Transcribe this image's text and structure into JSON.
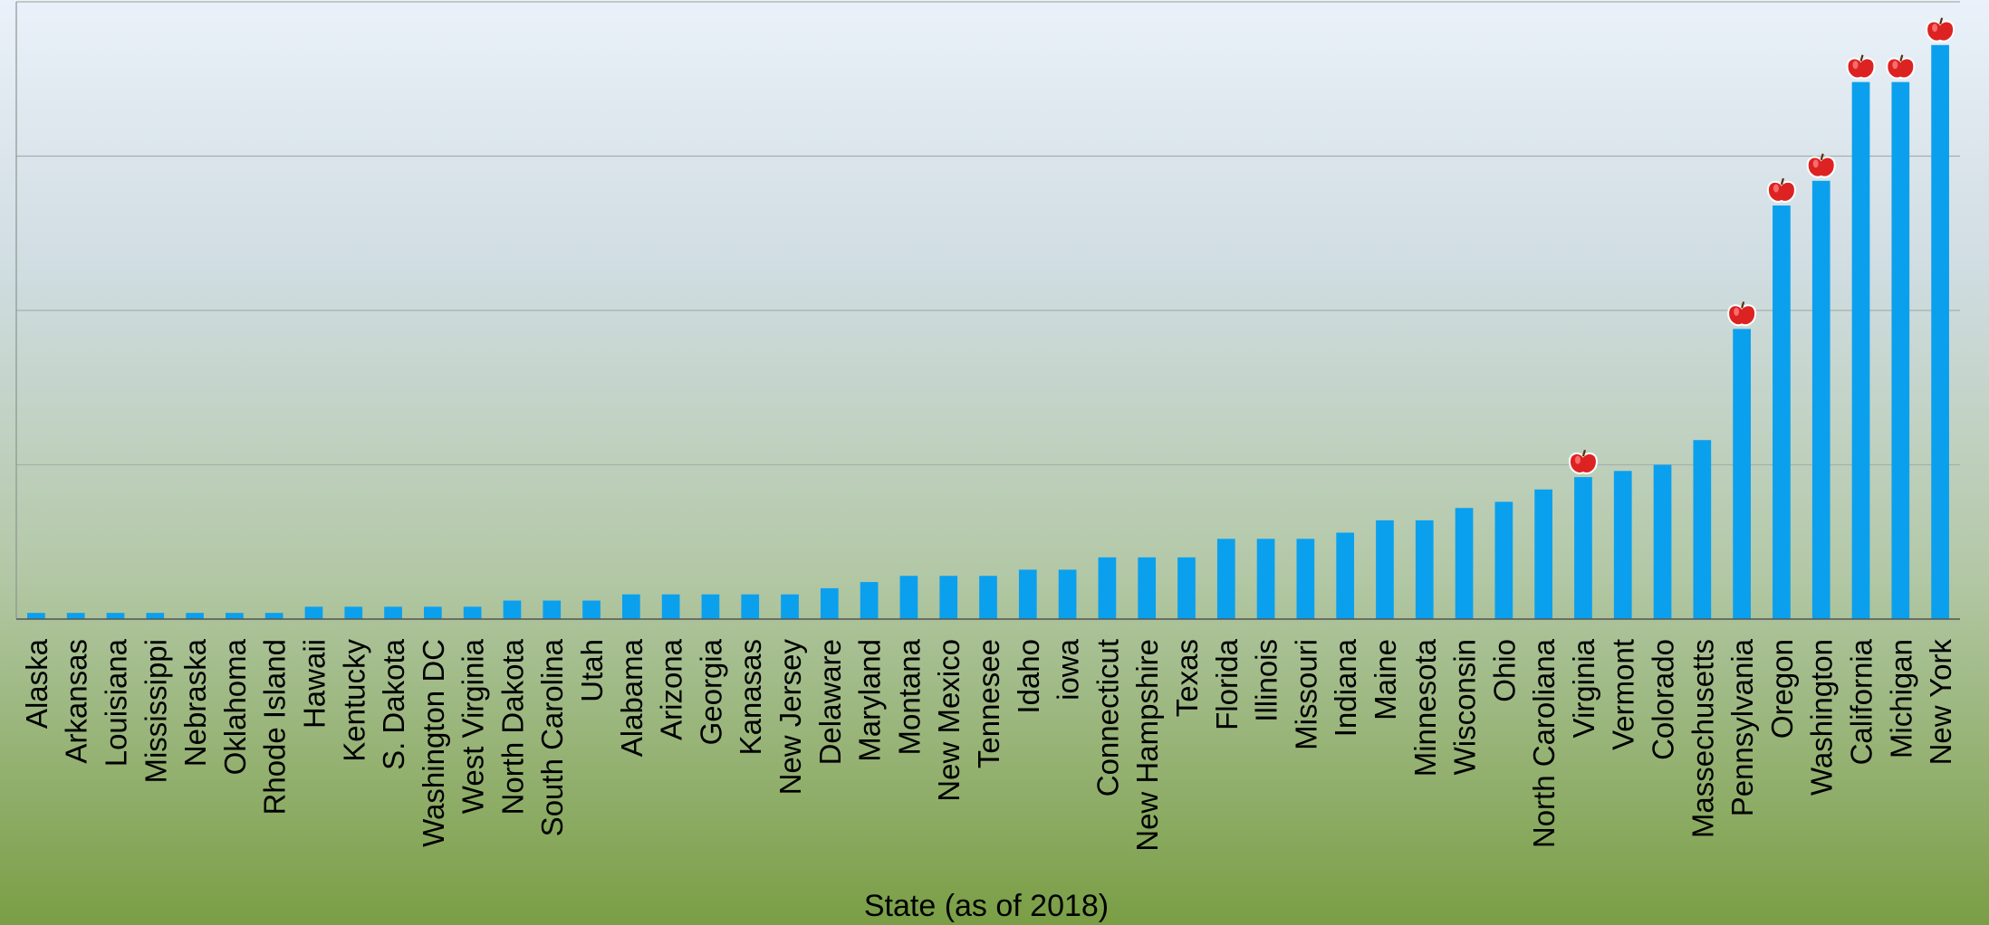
{
  "chart_data": {
    "type": "bar",
    "xlabel": "State (as of 2018)",
    "ylabel": "",
    "ylim": [
      0,
      100
    ],
    "grid": true,
    "bar_color": "#0aa0ee",
    "marker_color": "#dd2222",
    "marker_icon": "apple-icon",
    "categories": [
      "Alaska",
      "Arkansas",
      "Louisiana",
      "Mississippi",
      "Nebraska",
      "Oklahoma",
      "Rhode Island",
      "Hawaii",
      "Kentucky",
      "S. Dakota",
      "Washington DC",
      "West Virginia",
      "North Dakota",
      "South Carolina",
      "Utah",
      "Alabama",
      "Arizona",
      "Georgia",
      "Kanasas",
      "New Jersey",
      "Delaware",
      "Maryland",
      "Montana",
      "New Mexico",
      "Tennesee",
      "Idaho",
      "iowa",
      "Connecticut",
      "New Hampshire",
      "Texas",
      "Florida",
      "Illinois",
      "Missouri",
      "Indiana",
      "Maine",
      "Minnesota",
      "Wisconsin",
      "Ohio",
      "North Caroliana",
      "Virginia",
      "Vermont",
      "Colorado",
      "Massechusetts",
      "Pennsylvania",
      "Oregon",
      "Washington",
      "California",
      "Michigan",
      "New York"
    ],
    "values": [
      1,
      1,
      1,
      1,
      1,
      1,
      1,
      2,
      2,
      2,
      2,
      2,
      3,
      3,
      3,
      4,
      4,
      4,
      4,
      4,
      5,
      6,
      7,
      7,
      7,
      8,
      8,
      10,
      10,
      10,
      13,
      13,
      13,
      14,
      16,
      16,
      18,
      19,
      21,
      23,
      24,
      25,
      29,
      47,
      67,
      71,
      87,
      87,
      93
    ],
    "marked": [
      "Virginia",
      "Pennsylvania",
      "Oregon",
      "Washington",
      "California",
      "Michigan",
      "New York"
    ]
  }
}
